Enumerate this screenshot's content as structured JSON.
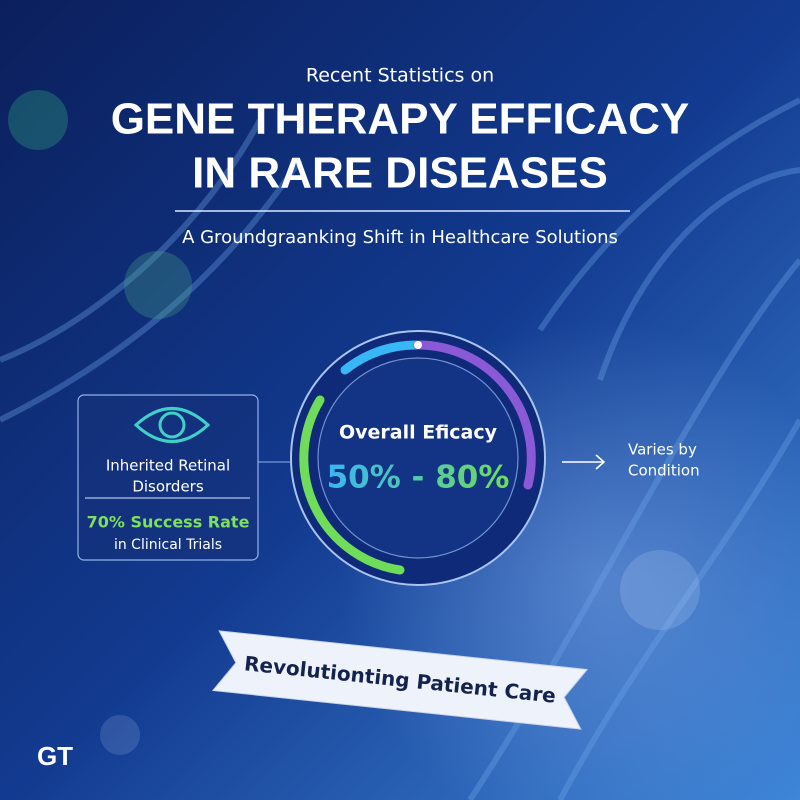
{
  "header": {
    "kicker": "Recent Statistics on",
    "title_lines": [
      "GENE THERAPY EFFICACY",
      "IN RARE DISEASES"
    ],
    "subtitle": "A Groundgraanking Shift in Healthcare Solutions"
  },
  "left_card": {
    "lines": [
      "Inherited Retinal",
      "Disorders"
    ],
    "stat": "70% Success Rate",
    "note": "in Clinical Trials"
  },
  "center": {
    "label": "Overall Eficacy",
    "range": "50% - 80%"
  },
  "right_note": {
    "lines": [
      "Varies by",
      "Condition"
    ]
  },
  "banner": "Revolutionting Patient Care",
  "logo": "GT"
}
